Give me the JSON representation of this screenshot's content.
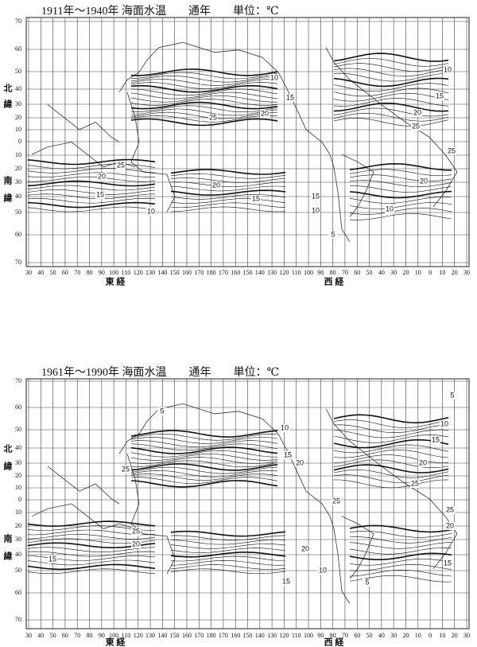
{
  "panels": [
    {
      "title": "1911年～1940年  海面水温　　通年　　単位：℃",
      "lat_labels": [
        70,
        60,
        50,
        40,
        30,
        20,
        10,
        0,
        10,
        20,
        30,
        40,
        50,
        60,
        70
      ],
      "north": [
        "北",
        "緯"
      ],
      "south": [
        "南",
        "緯"
      ],
      "lon_labels": [
        30,
        40,
        50,
        60,
        70,
        80,
        90,
        100,
        110,
        120,
        130,
        140,
        150,
        160,
        170,
        180,
        170,
        160,
        150,
        140,
        130,
        120,
        110,
        100,
        90,
        80,
        70,
        60,
        50,
        40,
        30,
        20,
        10,
        0,
        10,
        20,
        30
      ],
      "east": "東 経",
      "west": "西 経",
      "contour_labels": [
        "10",
        "15",
        "20",
        "25",
        "25",
        "20",
        "15",
        "10",
        "20",
        "15",
        "10",
        "15",
        "20",
        "25",
        "25",
        "20",
        "15",
        "10",
        "10",
        "5"
      ]
    },
    {
      "title": "1961年～1990年  海面水温　　通年　　単位：℃",
      "lat_labels": [
        70,
        60,
        50,
        40,
        30,
        20,
        10,
        0,
        10,
        20,
        30,
        40,
        50,
        60,
        70
      ],
      "north": [
        "北",
        "緯"
      ],
      "south": [
        "南",
        "緯"
      ],
      "lon_labels": [
        30,
        40,
        50,
        60,
        70,
        80,
        90,
        100,
        110,
        120,
        130,
        140,
        150,
        160,
        170,
        180,
        170,
        160,
        150,
        140,
        130,
        120,
        110,
        100,
        90,
        80,
        70,
        60,
        50,
        40,
        30,
        20,
        10,
        0,
        10,
        20,
        30
      ],
      "east": "東 経",
      "west": "西 経",
      "contour_labels": [
        "5",
        "10",
        "15",
        "20",
        "25",
        "25",
        "25",
        "20",
        "15",
        "20",
        "15",
        "10",
        "5",
        "5",
        "10",
        "15",
        "20",
        "25",
        "25",
        "20",
        "15"
      ]
    }
  ]
}
